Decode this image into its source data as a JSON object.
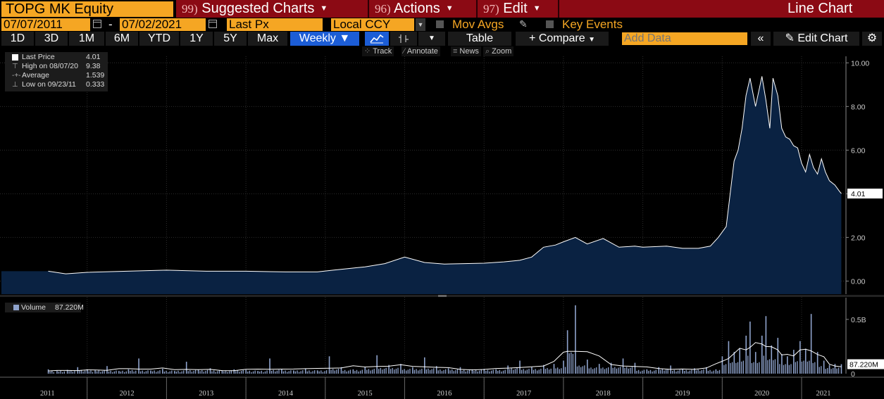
{
  "header": {
    "ticker": "TOPG MK Equity",
    "menus": [
      {
        "num": "99)",
        "label": "Suggested Charts"
      },
      {
        "num": "96)",
        "label": "Actions"
      },
      {
        "num": "97)",
        "label": "Edit"
      }
    ],
    "chart_kind": "Line Chart"
  },
  "controls": {
    "start_date": "07/07/2011",
    "dash": "-",
    "end_date": "07/02/2021",
    "field": "Last Px",
    "currency": "Local CCY",
    "mov_avgs": "Mov Avgs",
    "key_events": "Key Events"
  },
  "periods": [
    "1D",
    "3D",
    "1M",
    "6M",
    "YTD",
    "1Y",
    "5Y",
    "Max"
  ],
  "frequency": "Weekly",
  "frequency_arrow": "▼",
  "toolbar": {
    "table": "Table",
    "compare": "Compare",
    "compare_plus": "+",
    "add_data_placeholder": "Add Data",
    "collapse": "«",
    "edit_chart": "Edit Chart",
    "pencil_glyph": "✎",
    "gear_glyph": "⚙"
  },
  "tools": [
    {
      "label": "Track"
    },
    {
      "label": "Annotate"
    },
    {
      "label": "News"
    },
    {
      "label": "Zoom"
    }
  ],
  "legend": {
    "rows": [
      {
        "key": "Last Price",
        "value": "4.01"
      },
      {
        "key": "High on 08/07/20",
        "value": "9.38"
      },
      {
        "key": "Average",
        "value": "1.539"
      },
      {
        "key": "Low on 09/23/11",
        "value": "0.333"
      }
    ]
  },
  "volume_legend": {
    "key": "Volume",
    "value": "87.220M"
  },
  "colors": {
    "accent_orange": "#f5a623",
    "menu_red": "#8b0a14",
    "selected_blue": "#1c5dd6",
    "area_fill": "#0a2242",
    "line": "#ffffff",
    "volume_bar": "#8fa3cc"
  },
  "chart_data": [
    {
      "type": "area",
      "series": [
        {
          "name": "Last Price",
          "x": [
            2011.51,
            2011.73,
            2012.0,
            2012.5,
            2013.0,
            2013.5,
            2014.0,
            2014.5,
            2014.9,
            2015.1,
            2015.5,
            2015.75,
            2016.0,
            2016.25,
            2016.5,
            2016.75,
            2017.0,
            2017.25,
            2017.45,
            2017.6,
            2017.75,
            2017.9,
            2018.0,
            2018.15,
            2018.3,
            2018.5,
            2018.7,
            2018.9,
            2019.0,
            2019.3,
            2019.5,
            2019.7,
            2019.85,
            2019.95,
            2020.05,
            2020.15,
            2020.2,
            2020.25,
            2020.3,
            2020.35,
            2020.42,
            2020.5,
            2020.55,
            2020.6,
            2020.64,
            2020.7,
            2020.75,
            2020.8,
            2020.85,
            2020.9,
            2020.95,
            2021.0,
            2021.05,
            2021.1,
            2021.15,
            2021.2,
            2021.25,
            2021.3,
            2021.35,
            2021.42,
            2021.48,
            2021.5
          ],
          "y": [
            0.45,
            0.333,
            0.4,
            0.45,
            0.5,
            0.45,
            0.45,
            0.42,
            0.42,
            0.5,
            0.65,
            0.8,
            1.1,
            0.85,
            0.78,
            0.8,
            0.82,
            0.88,
            0.95,
            1.1,
            1.55,
            1.65,
            1.8,
            2.0,
            1.7,
            1.95,
            1.55,
            1.6,
            1.55,
            1.6,
            1.5,
            1.5,
            1.6,
            2.0,
            2.5,
            5.5,
            6.0,
            7.0,
            8.5,
            9.3,
            8.0,
            9.38,
            8.3,
            7.0,
            9.3,
            8.5,
            7.0,
            6.6,
            6.5,
            6.2,
            6.1,
            5.4,
            5.0,
            5.8,
            5.2,
            4.9,
            5.6,
            5.0,
            4.6,
            4.4,
            4.1,
            4.01
          ]
        }
      ],
      "ylim": [
        -0.6,
        10.3
      ],
      "yticks": [
        "10.00",
        "8.00",
        "6.00",
        "4.00",
        "2.00",
        "0.00"
      ],
      "last_label": "4.01",
      "grid": true
    },
    {
      "type": "bar",
      "series": [
        {
          "name": "Volume",
          "unit": "M",
          "x": [
            2011.51,
            2011.62,
            2011.75,
            2011.88,
            2012.0,
            2012.1,
            2012.25,
            2012.4,
            2012.52,
            2012.65,
            2012.8,
            2012.95,
            2013.1,
            2013.25,
            2013.4,
            2013.55,
            2013.7,
            2013.85,
            2014.0,
            2014.15,
            2014.3,
            2014.45,
            2014.6,
            2014.75,
            2014.9,
            2015.05,
            2015.2,
            2015.35,
            2015.5,
            2015.65,
            2015.8,
            2015.95,
            2016.1,
            2016.25,
            2016.4,
            2016.55,
            2016.7,
            2016.85,
            2017.0,
            2017.15,
            2017.3,
            2017.45,
            2017.6,
            2017.75,
            2017.88,
            2018.0,
            2018.05,
            2018.15,
            2018.3,
            2018.45,
            2018.6,
            2018.75,
            2018.9,
            2019.05,
            2019.2,
            2019.35,
            2019.5,
            2019.65,
            2019.8,
            2019.92,
            2020.0,
            2020.08,
            2020.15,
            2020.22,
            2020.3,
            2020.35,
            2020.42,
            2020.5,
            2020.55,
            2020.62,
            2020.7,
            2020.75,
            2020.82,
            2020.9,
            2020.98,
            2021.05,
            2021.12,
            2021.2,
            2021.28,
            2021.35,
            2021.42,
            2021.5
          ],
          "values": [
            40,
            25,
            35,
            60,
            40,
            30,
            70,
            25,
            40,
            140,
            30,
            45,
            25,
            110,
            35,
            50,
            30,
            40,
            35,
            25,
            140,
            40,
            30,
            45,
            30,
            160,
            60,
            40,
            60,
            170,
            80,
            90,
            60,
            150,
            70,
            50,
            60,
            40,
            45,
            40,
            75,
            120,
            60,
            80,
            90,
            120,
            400,
            630,
            130,
            90,
            100,
            140,
            100,
            40,
            60,
            75,
            40,
            50,
            60,
            40,
            160,
            300,
            200,
            230,
            350,
            480,
            200,
            350,
            530,
            260,
            330,
            180,
            160,
            220,
            300,
            230,
            550,
            200,
            120,
            80,
            90,
            87.22
          ]
        }
      ],
      "ylim": [
        0,
        700
      ],
      "yticks": [
        "0.5B"
      ],
      "last_label": "87.220M"
    }
  ],
  "x_axis": {
    "labels": [
      "2011",
      "2012",
      "2013",
      "2014",
      "2015",
      "2016",
      "2017",
      "2018",
      "2019",
      "2020",
      "2021"
    ]
  }
}
